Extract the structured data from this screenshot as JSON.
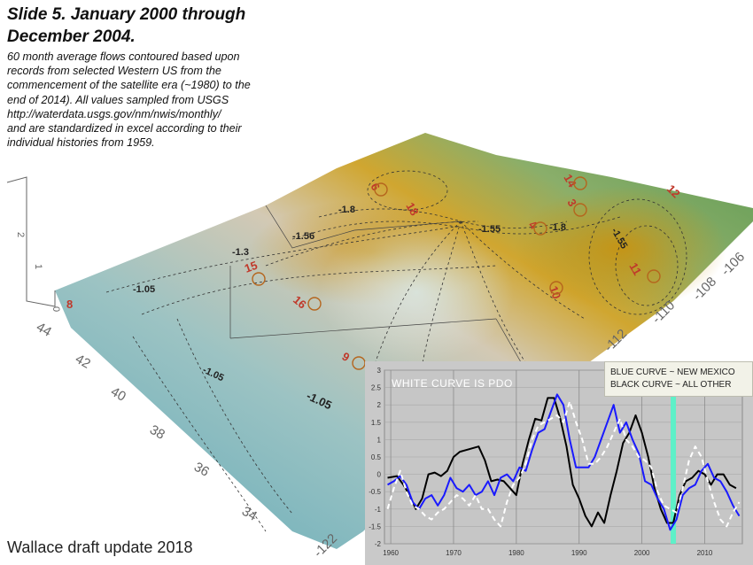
{
  "slide": {
    "title_line1": "Slide 5.  January 2000 through",
    "title_line2": "December 2004.",
    "desc_lines": [
      "60 month average flows  contoured based upon",
      "records from selected Western US from the",
      "commencement of the satellite era (~1980) to the",
      "end of  2014).    All values sampled from USGS",
      "http://waterdata.usgs.gov/nm/nwis/monthly/",
      "and are standardized in excel according to their",
      "individual histories from 1959."
    ],
    "footer": "Wallace draft update 2018"
  },
  "map": {
    "lat_labels": [
      "44",
      "42",
      "40",
      "38",
      "36",
      "34"
    ],
    "lon_labels": [
      "-122",
      "-112",
      "-110",
      "-108",
      "-106"
    ],
    "z_labels": [
      "2",
      "1",
      "0"
    ],
    "contour_labels": [
      "-1.05",
      "-1.3",
      "-1.56",
      "-1.8",
      "-1.55",
      "-1.8",
      "-1.55",
      "-1.05",
      "-1.05"
    ],
    "station_labels": [
      "15",
      "16",
      "9",
      "10",
      "11",
      "14",
      "3",
      "4",
      "6",
      "18",
      "12",
      "8"
    ],
    "colors": {
      "low": "#6fb3c0",
      "mid": "#b9cfc9",
      "high": "#c89a1a",
      "green": "#5f9d55",
      "station": "#c0392b"
    }
  },
  "inset_chart": {
    "legend_blue": "BLUE CURVE ~ NEW MEXICO",
    "legend_black": "BLACK CURVE ~ ALL OTHER",
    "pdo_label": "WHITE CURVE IS PDO"
  },
  "chart_data": {
    "type": "line",
    "title": "",
    "xlabel": "",
    "ylabel": "",
    "xlim": [
      1959,
      2016
    ],
    "ylim": [
      -2,
      3
    ],
    "yticks": [
      3,
      2.5,
      2,
      1.5,
      1,
      0.5,
      0,
      -0.5,
      -1,
      -1.5,
      -2
    ],
    "xticks": [
      1960,
      1970,
      1980,
      1990,
      2000,
      2010
    ],
    "grid": true,
    "highlight_x": 2005,
    "highlight_color": "#5ef0c8",
    "series": [
      {
        "color": "#000000",
        "x": [
          1959.5,
          1961,
          1962,
          1963,
          1964,
          1965,
          1966,
          1967,
          1968,
          1969,
          1970,
          1971,
          1972,
          1973,
          1974,
          1975,
          1976,
          1977,
          1978,
          1979,
          1980,
          1981,
          1982,
          1983,
          1984,
          1985,
          1986,
          1987,
          1988,
          1989,
          1990,
          1991,
          1992,
          1993,
          1994,
          1995,
          1996,
          1997,
          1998,
          1999,
          2000,
          2001,
          2002,
          2003,
          2004,
          2005,
          2006,
          2007,
          2008,
          2009,
          2010,
          2011,
          2012,
          2013,
          2014,
          2015
        ],
        "values": [
          -0.1,
          -0.05,
          -0.3,
          -0.6,
          -1.0,
          -0.7,
          0.0,
          0.05,
          -0.05,
          0.1,
          0.5,
          0.65,
          0.7,
          0.75,
          0.8,
          0.4,
          -0.2,
          -0.15,
          -0.2,
          -0.4,
          -0.6,
          0.3,
          1.0,
          1.6,
          1.55,
          2.2,
          2.2,
          1.6,
          0.8,
          -0.3,
          -0.7,
          -1.2,
          -1.5,
          -1.1,
          -1.4,
          -0.6,
          0.1,
          0.9,
          1.2,
          1.7,
          1.2,
          0.5,
          -0.4,
          -1.0,
          -1.4,
          -1.4,
          -0.6,
          -0.2,
          -0.1,
          0.1,
          0.0,
          -0.3,
          0.0,
          0.0,
          -0.3,
          -0.4
        ]
      },
      {
        "color": "#1a1aff",
        "x": [
          1959.5,
          1960.5,
          1961.5,
          1962.5,
          1963.5,
          1964.5,
          1965.5,
          1966.5,
          1967.5,
          1968.5,
          1969.5,
          1970.5,
          1971.5,
          1972.5,
          1973.5,
          1974.5,
          1975.5,
          1976.5,
          1977.5,
          1978.5,
          1979.5,
          1980.5,
          1981.5,
          1982.5,
          1983.5,
          1984.5,
          1985.5,
          1986.5,
          1987.5,
          1988.5,
          1989.5,
          1990.5,
          1991.5,
          1992.5,
          1993.5,
          1994.5,
          1995.5,
          1996.5,
          1997.5,
          1998.5,
          1999.5,
          2000.5,
          2001.5,
          2002.5,
          2003.5,
          2004.5,
          2005.5,
          2006.5,
          2007.5,
          2008.5,
          2009.5,
          2010.5,
          2011.5,
          2012.5,
          2013.5,
          2014.5,
          2015.5
        ],
        "values": [
          -0.3,
          -0.2,
          -0.05,
          -0.3,
          -0.8,
          -1.0,
          -0.7,
          -0.6,
          -0.9,
          -0.6,
          -0.1,
          -0.4,
          -0.5,
          -0.3,
          -0.6,
          -0.5,
          -0.2,
          -0.6,
          -0.1,
          0.0,
          -0.2,
          0.2,
          0.1,
          0.7,
          1.2,
          1.3,
          1.8,
          2.3,
          2.0,
          1.0,
          0.2,
          0.2,
          0.2,
          0.5,
          1.0,
          1.5,
          2.0,
          1.2,
          1.5,
          1.0,
          0.6,
          -0.2,
          -0.3,
          -0.7,
          -1.0,
          -1.6,
          -1.3,
          -0.6,
          -0.4,
          -0.3,
          0.1,
          0.3,
          -0.1,
          -0.2,
          -0.5,
          -0.9,
          -1.2
        ]
      },
      {
        "color": "#ffffff",
        "dash": true,
        "x": [
          1959.5,
          1960.5,
          1961.5,
          1962.5,
          1963.5,
          1964.5,
          1965.5,
          1966.5,
          1967.5,
          1968.5,
          1969.5,
          1970.5,
          1971.5,
          1972.5,
          1973.5,
          1974.5,
          1975.5,
          1976.5,
          1977.5,
          1978.5,
          1979.5,
          1980.5,
          1981.5,
          1982.5,
          1983.5,
          1984.5,
          1985.5,
          1986.5,
          1987.5,
          1988.5,
          1989.5,
          1990.5,
          1991.5,
          1992.5,
          1993.5,
          1994.5,
          1995.5,
          1996.5,
          1997.5,
          1998.5,
          1999.5,
          2000.5,
          2001.5,
          2002.5,
          2003.5,
          2004.5,
          2005.5,
          2006.5,
          2007.5,
          2008.5,
          2009.5,
          2010.5,
          2011.5,
          2012.5,
          2013.5,
          2014.5,
          2015.5
        ],
        "values": [
          -1.0,
          -0.4,
          0.1,
          -0.5,
          -0.9,
          -1.0,
          -1.2,
          -1.3,
          -1.1,
          -1.0,
          -0.8,
          -0.6,
          -0.7,
          -0.9,
          -0.6,
          -1.0,
          -1.0,
          -1.3,
          -1.5,
          -0.8,
          -0.3,
          -0.1,
          0.3,
          1.0,
          1.4,
          1.5,
          1.6,
          1.7,
          1.5,
          2.1,
          1.5,
          1.0,
          0.3,
          0.3,
          0.5,
          0.8,
          1.2,
          1.6,
          1.0,
          0.8,
          0.5,
          0.4,
          0.2,
          -0.5,
          -0.9,
          -1.0,
          -1.1,
          -0.4,
          0.4,
          0.8,
          0.5,
          -0.2,
          -0.8,
          -1.3,
          -1.5,
          -1.1,
          -0.8
        ]
      }
    ]
  }
}
